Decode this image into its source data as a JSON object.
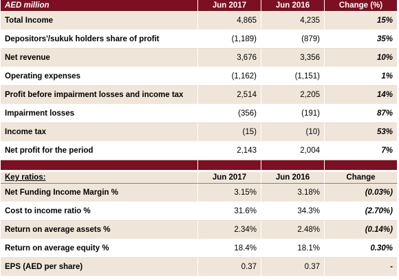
{
  "income_table": {
    "header": [
      "AED million",
      "Jun 2017",
      "Jun 2016",
      "Change (%)"
    ],
    "rows": [
      {
        "label": "Total Income",
        "a": "4,865",
        "b": "4,235",
        "c": "15%"
      },
      {
        "label": "Depositors'/sukuk holders share of profit",
        "a": "(1,189)",
        "b": "(879)",
        "c": "35%"
      },
      {
        "label": "Net revenue",
        "a": "3,676",
        "b": "3,356",
        "c": "10%"
      },
      {
        "label": "Operating expenses",
        "a": "(1,162)",
        "b": "(1,151)",
        "c": "1%"
      },
      {
        "label": "Profit before impairment losses and income tax",
        "a": "2,514",
        "b": "2,205",
        "c": "14%"
      },
      {
        "label": "Impairment losses",
        "a": "(356)",
        "b": "(191)",
        "c": "87%"
      },
      {
        "label": "Income tax",
        "a": "(15)",
        "b": "(10)",
        "c": "53%"
      },
      {
        "label": "Net profit for the period",
        "a": "2,143",
        "b": "2,004",
        "c": "7%"
      }
    ]
  },
  "ratios_table": {
    "header": [
      "Key ratios:",
      "Jun 2017",
      "Jun 2016",
      "Change"
    ],
    "rows": [
      {
        "label": "Net Funding Income Margin %",
        "a": "3.15%",
        "b": "3.18%",
        "c": "(0.03%)"
      },
      {
        "label": "Cost to income ratio %",
        "a": "31.6%",
        "b": "34.3%",
        "c": "(2.70%)"
      },
      {
        "label": "Return on average assets %",
        "a": "2.34%",
        "b": "2.48%",
        "c": "(0.14%)"
      },
      {
        "label": "Return on average equity %",
        "a": "18.4%",
        "b": "18.1%",
        "c": "0.30%"
      },
      {
        "label": "EPS (AED per share)",
        "a": "0.37",
        "b": "0.37",
        "c": "-"
      }
    ]
  },
  "colors": {
    "header_bg": "#7c1022",
    "shaded_row": "#efe6d9"
  }
}
